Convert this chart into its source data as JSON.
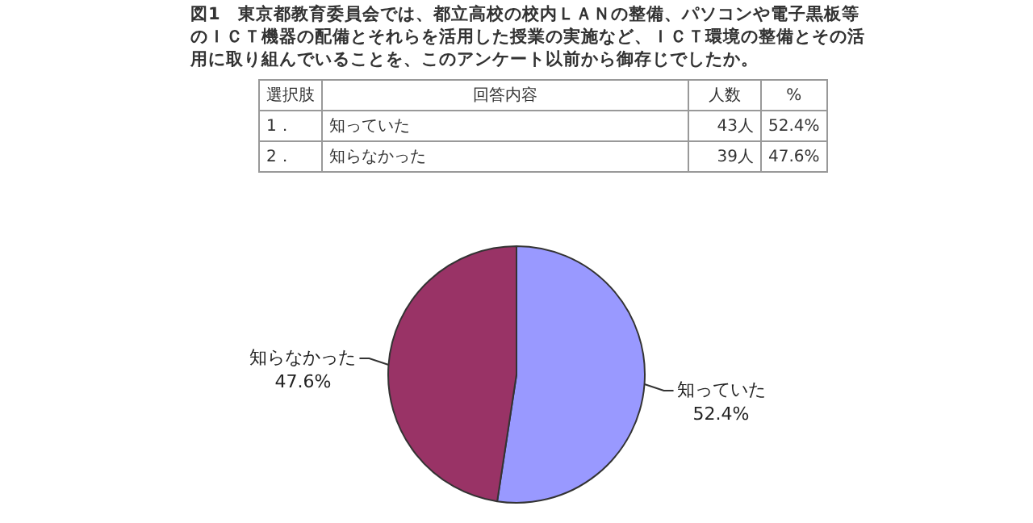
{
  "chart_data": {
    "type": "pie",
    "title": "図1　東京都教育委員会では、都立高校の校内ＬＡＮの整備、パソコンや電子黒板等のＩＣＴ機器の配備とそれらを活用した授業の実施など、ＩＣＴ環境の整備とその活用に取り組んでいることを、このアンケート以前から御存じでしたか。",
    "categories": [
      "知っていた",
      "知らなかった"
    ],
    "values": [
      52.4,
      47.6
    ],
    "colors": [
      "#9999ff",
      "#993366"
    ],
    "value_labels": [
      "52.4%",
      "47.6%"
    ],
    "annotations": [
      "選択肢",
      "回答内容",
      "人数",
      "%",
      "1．",
      "2．",
      "43人",
      "39人"
    ]
  }
}
